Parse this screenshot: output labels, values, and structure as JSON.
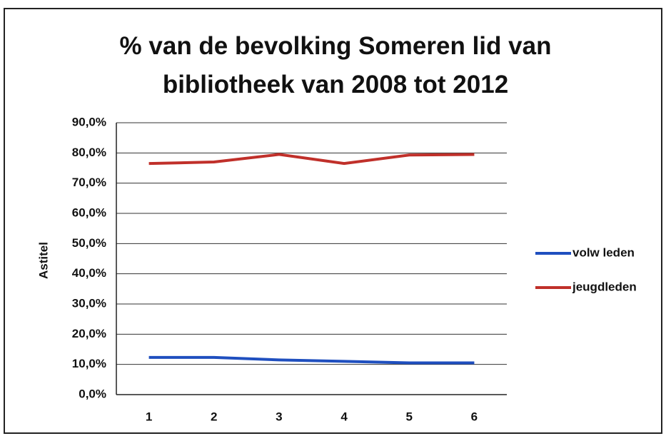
{
  "chart_data": {
    "type": "line",
    "title": "% van de bevolking Someren lid van bibliotheek van 2008 tot 2012",
    "y_label": "Astitel",
    "categories": [
      "1",
      "2",
      "3",
      "4",
      "5",
      "6"
    ],
    "series": [
      {
        "name": "volw leden",
        "color": "#1f4fbf",
        "values": [
          12.3,
          12.3,
          11.5,
          11.0,
          10.5,
          10.5
        ]
      },
      {
        "name": "jeugdleden",
        "color": "#c0302a",
        "values": [
          76.5,
          77.0,
          79.5,
          76.5,
          79.3,
          79.5
        ]
      }
    ],
    "ylim": [
      0,
      90
    ],
    "yticks": [
      {
        "value": 0,
        "label": "0,0%"
      },
      {
        "value": 10,
        "label": "10,0%"
      },
      {
        "value": 20,
        "label": "20,0%"
      },
      {
        "value": 30,
        "label": "30,0%"
      },
      {
        "value": 40,
        "label": "40,0%"
      },
      {
        "value": 50,
        "label": "50,0%"
      },
      {
        "value": 60,
        "label": "60,0%"
      },
      {
        "value": 70,
        "label": "70,0%"
      },
      {
        "value": 80,
        "label": "80,0%"
      },
      {
        "value": 90,
        "label": "90,0%"
      }
    ],
    "grid": true,
    "legend": "right"
  }
}
